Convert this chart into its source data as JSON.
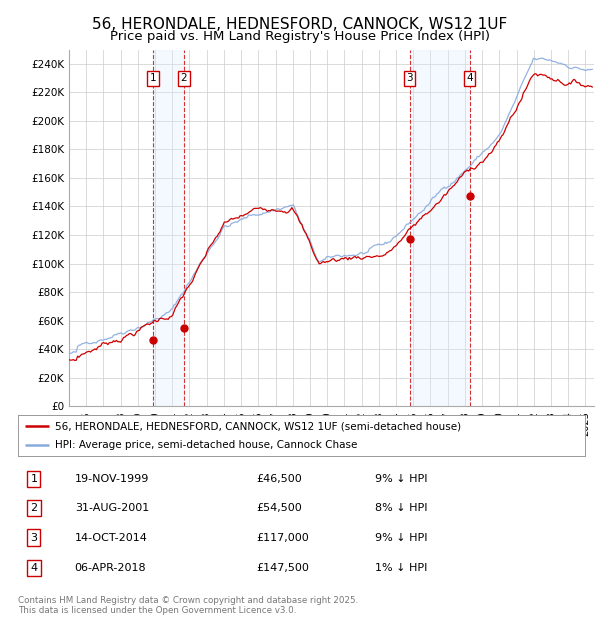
{
  "title": "56, HERONDALE, HEDNESFORD, CANNOCK, WS12 1UF",
  "subtitle": "Price paid vs. HM Land Registry's House Price Index (HPI)",
  "ylabel_ticks": [
    "£0",
    "£20K",
    "£40K",
    "£60K",
    "£80K",
    "£100K",
    "£120K",
    "£140K",
    "£160K",
    "£180K",
    "£200K",
    "£220K",
    "£240K"
  ],
  "ylim": [
    0,
    250000
  ],
  "xlim_start": 1995.0,
  "xlim_end": 2025.5,
  "sale_dates": [
    1999.885,
    2001.664,
    2014.786,
    2018.268
  ],
  "sale_prices": [
    46500,
    54500,
    117000,
    147500
  ],
  "sale_labels": [
    "1",
    "2",
    "3",
    "4"
  ],
  "background_color": "#ffffff",
  "plot_bg_color": "#ffffff",
  "grid_color": "#cccccc",
  "line_color_property": "#cc0000",
  "line_color_hpi": "#88aadd",
  "shade_color": "#ddeeff",
  "legend_line1": "56, HERONDALE, HEDNESFORD, CANNOCK, WS12 1UF (semi-detached house)",
  "legend_line2": "HPI: Average price, semi-detached house, Cannock Chase",
  "table_entries": [
    {
      "label": "1",
      "date": "19-NOV-1999",
      "price": "£46,500",
      "hpi": "9% ↓ HPI"
    },
    {
      "label": "2",
      "date": "31-AUG-2001",
      "price": "£54,500",
      "hpi": "8% ↓ HPI"
    },
    {
      "label": "3",
      "date": "14-OCT-2014",
      "price": "£117,000",
      "hpi": "9% ↓ HPI"
    },
    {
      "label": "4",
      "date": "06-APR-2018",
      "price": "£147,500",
      "hpi": "1% ↓ HPI"
    }
  ],
  "footnote": "Contains HM Land Registry data © Crown copyright and database right 2025.\nThis data is licensed under the Open Government Licence v3.0.",
  "title_fontsize": 11,
  "subtitle_fontsize": 9.5
}
